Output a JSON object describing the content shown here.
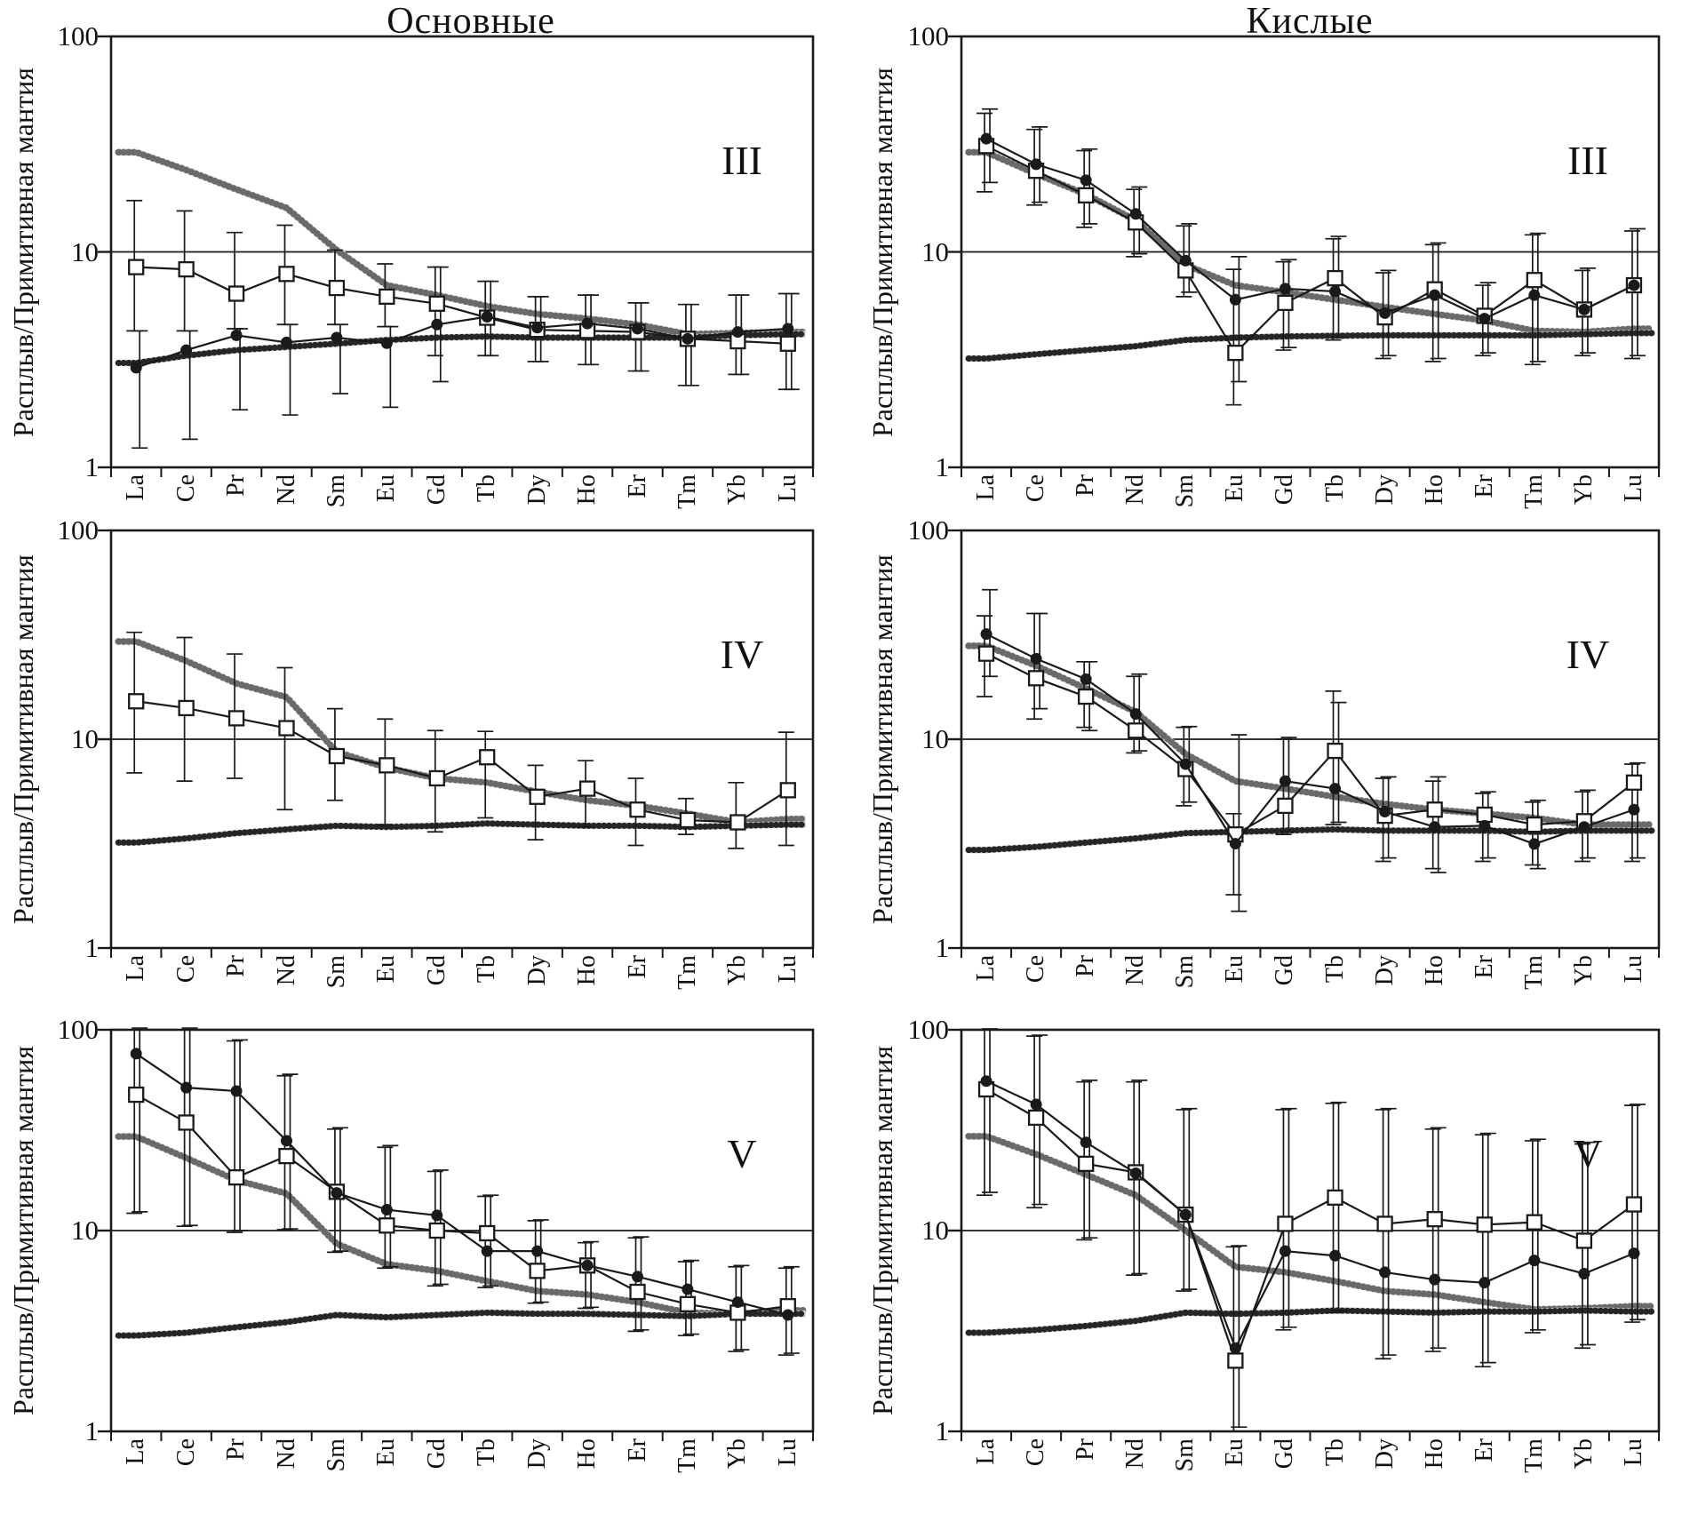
{
  "page": {
    "title_left": "Основные",
    "title_right": "Кислые",
    "y_axis_label": "Расплыв/Примитивная мантия"
  },
  "chart_data": [
    {
      "type": "line",
      "id": "basic-III",
      "column": "Основные",
      "panel_label": "III",
      "ylim": [
        1,
        100
      ],
      "y_scale": "log",
      "y_ticks": [
        "1",
        "10",
        "100"
      ],
      "gridline_y": 10,
      "x_categories": [
        "La",
        "Ce",
        "Pr",
        "Nd",
        "Sm",
        "Eu",
        "Gd",
        "Tb",
        "Dy",
        "Ho",
        "Er",
        "Tm",
        "Yb",
        "Lu"
      ],
      "series": [
        {
          "name": "upper-dotted-band",
          "style": "band-light",
          "values": [
            29,
            24,
            19.5,
            16,
            10.2,
            7.0,
            6.3,
            5.6,
            5.15,
            4.9,
            4.6,
            4.15,
            4.2,
            4.25
          ]
        },
        {
          "name": "lower-dotted-band",
          "style": "band-dark",
          "values": [
            3.05,
            3.3,
            3.5,
            3.62,
            3.75,
            3.9,
            4.0,
            4.05,
            4.0,
            4.0,
            4.0,
            4.0,
            4.1,
            4.15
          ]
        },
        {
          "name": "open-squares",
          "style": "square",
          "values": [
            8.5,
            8.3,
            6.4,
            7.9,
            6.8,
            6.2,
            5.75,
            4.95,
            4.35,
            4.3,
            4.25,
            3.95,
            3.85,
            3.75
          ],
          "err_lo": [
            4.3,
            4.3,
            4.4,
            4.6,
            4.6,
            4.5,
            3.3,
            3.3,
            3.1,
            3.0,
            2.8,
            2.4,
            2.7,
            2.3
          ],
          "err_hi": [
            17.3,
            15.5,
            12.3,
            13.3,
            10.2,
            8.8,
            8.5,
            7.3,
            6.2,
            6.3,
            5.8,
            5.7,
            6.3,
            6.4
          ]
        },
        {
          "name": "filled-circles",
          "style": "circle",
          "values": [
            2.9,
            3.5,
            4.1,
            3.8,
            4.0,
            3.77,
            4.6,
            5.0,
            4.45,
            4.65,
            4.4,
            3.95,
            4.25,
            4.4
          ],
          "err_lo": [
            1.23,
            1.35,
            1.85,
            1.75,
            2.2,
            1.9,
            2.5,
            3.3,
            3.1,
            3.0,
            2.8,
            2.4,
            2.7,
            2.3
          ],
          "err_hi": [
            4.3,
            4.3,
            4.4,
            4.6,
            4.6,
            4.5,
            8.5,
            7.3,
            6.2,
            6.3,
            5.8,
            5.7,
            6.3,
            6.4
          ]
        }
      ]
    },
    {
      "type": "line",
      "id": "acid-III",
      "column": "Кислые",
      "panel_label": "III",
      "ylim": [
        1,
        100
      ],
      "y_scale": "log",
      "y_ticks": [
        "1",
        "10",
        "100"
      ],
      "gridline_y": 10,
      "x_categories": [
        "La",
        "Ce",
        "Pr",
        "Nd",
        "Sm",
        "Eu",
        "Gd",
        "Tb",
        "Dy",
        "Ho",
        "Er",
        "Tm",
        "Yb",
        "Lu"
      ],
      "series": [
        {
          "name": "upper-dotted-band",
          "style": "band-light",
          "values": [
            29,
            23,
            18.5,
            14,
            8.7,
            7.0,
            6.5,
            6.0,
            5.55,
            5.15,
            4.8,
            4.3,
            4.25,
            4.4
          ]
        },
        {
          "name": "lower-dotted-band",
          "style": "band-dark",
          "values": [
            3.2,
            3.35,
            3.5,
            3.65,
            3.9,
            4.0,
            4.05,
            4.08,
            4.1,
            4.1,
            4.1,
            4.1,
            4.15,
            4.2
          ]
        },
        {
          "name": "open-squares",
          "style": "square",
          "values": [
            31,
            23.8,
            18.3,
            13.7,
            8.2,
            3.4,
            5.8,
            7.55,
            4.97,
            6.7,
            5.05,
            7.4,
            5.4,
            7.0
          ],
          "err_lo": [
            19,
            16.5,
            13,
            9.5,
            6.2,
            1.95,
            3.5,
            3.9,
            3.2,
            3.1,
            3.3,
            3.0,
            3.3,
            3.2
          ],
          "err_hi": [
            44,
            37,
            29.5,
            19.5,
            13.2,
            8.3,
            9.0,
            11.5,
            8.0,
            10.8,
            7.0,
            12.0,
            8.2,
            12.5
          ]
        },
        {
          "name": "filled-circles",
          "style": "circle",
          "values": [
            33.5,
            25.5,
            21.5,
            15.0,
            9.1,
            6.0,
            6.75,
            6.55,
            5.2,
            6.3,
            4.9,
            6.3,
            5.4,
            7.0
          ],
          "err_lo": [
            21,
            17,
            13.5,
            9.8,
            6.5,
            2.5,
            3.6,
            4.0,
            3.3,
            3.2,
            3.4,
            3.1,
            3.4,
            3.3
          ],
          "err_hi": [
            46,
            38,
            30,
            20,
            13.5,
            9.5,
            9.2,
            11.8,
            8.2,
            11.0,
            7.2,
            12.2,
            8.4,
            12.8
          ]
        }
      ]
    },
    {
      "type": "line",
      "id": "basic-IV",
      "column": "Основные",
      "panel_label": "IV",
      "ylim": [
        1,
        100
      ],
      "y_scale": "log",
      "y_ticks": [
        "1",
        "10",
        "100"
      ],
      "gridline_y": 10,
      "x_categories": [
        "La",
        "Ce",
        "Pr",
        "Nd",
        "Sm",
        "Eu",
        "Gd",
        "Tb",
        "Dy",
        "Ho",
        "Er",
        "Tm",
        "Yb",
        "Lu"
      ],
      "series": [
        {
          "name": "upper-dotted-band",
          "style": "band-light",
          "values": [
            29.4,
            23.7,
            18.5,
            15.9,
            8.7,
            7.3,
            6.5,
            6.2,
            5.6,
            5.1,
            4.8,
            4.4,
            4.0,
            4.15
          ]
        },
        {
          "name": "lower-dotted-band",
          "style": "band-dark",
          "values": [
            3.2,
            3.35,
            3.55,
            3.7,
            3.85,
            3.8,
            3.85,
            3.95,
            3.9,
            3.85,
            3.85,
            3.8,
            3.85,
            3.9
          ]
        },
        {
          "name": "open-squares",
          "style": "square",
          "values": [
            15.2,
            14.1,
            12.6,
            11.3,
            8.3,
            7.5,
            6.5,
            8.2,
            5.3,
            5.8,
            4.6,
            4.1,
            4.0,
            5.7
          ],
          "err_lo": [
            6.9,
            6.3,
            6.5,
            4.6,
            5.1,
            3.9,
            3.6,
            4.2,
            3.3,
            3.8,
            3.1,
            3.5,
            3.0,
            3.1
          ],
          "err_hi": [
            32.5,
            30.7,
            25.6,
            22,
            14,
            12.5,
            11,
            10.9,
            7.5,
            7.9,
            6.5,
            5.2,
            6.2,
            10.8
          ]
        }
      ]
    },
    {
      "type": "line",
      "id": "acid-IV",
      "column": "Кислые",
      "panel_label": "IV",
      "ylim": [
        1,
        100
      ],
      "y_scale": "log",
      "y_ticks": [
        "1",
        "10",
        "100"
      ],
      "gridline_y": 10,
      "x_categories": [
        "La",
        "Ce",
        "Pr",
        "Nd",
        "Sm",
        "Eu",
        "Gd",
        "Tb",
        "Dy",
        "Ho",
        "Er",
        "Tm",
        "Yb",
        "Lu"
      ],
      "series": [
        {
          "name": "upper-dotted-band",
          "style": "band-light",
          "values": [
            28,
            22.5,
            17.5,
            13.5,
            8.5,
            6.3,
            5.8,
            5.3,
            4.9,
            4.6,
            4.4,
            4.2,
            3.9,
            3.9
          ]
        },
        {
          "name": "lower-dotted-band",
          "style": "band-dark",
          "values": [
            2.95,
            3.05,
            3.2,
            3.35,
            3.55,
            3.6,
            3.65,
            3.7,
            3.65,
            3.65,
            3.65,
            3.6,
            3.65,
            3.65
          ]
        },
        {
          "name": "open-squares",
          "style": "square",
          "values": [
            25.7,
            19.6,
            16.0,
            11.0,
            7.2,
            3.5,
            4.8,
            8.8,
            4.3,
            4.6,
            4.35,
            3.9,
            4.05,
            6.2
          ],
          "err_lo": [
            16,
            12.5,
            11.4,
            8.6,
            4.8,
            1.8,
            3.5,
            3.9,
            2.6,
            2.4,
            2.6,
            2.5,
            2.6,
            2.6
          ],
          "err_hi": [
            39,
            40,
            23.5,
            20,
            11.4,
            4.4,
            10,
            17,
            6.5,
            6.3,
            5.5,
            5.0,
            5.6,
            7.6
          ]
        },
        {
          "name": "filled-circles",
          "style": "circle",
          "values": [
            31.9,
            24.3,
            19.4,
            13.2,
            7.6,
            3.16,
            6.3,
            5.8,
            4.5,
            3.8,
            3.85,
            3.15,
            3.8,
            4.6
          ],
          "err_lo": [
            20,
            14,
            11,
            8.8,
            5.0,
            1.5,
            3.6,
            4.0,
            2.7,
            2.3,
            2.7,
            2.4,
            2.7,
            2.7
          ],
          "err_hi": [
            52,
            40,
            23.5,
            20.5,
            11.5,
            10.5,
            10.2,
            15,
            6.6,
            6.6,
            5.6,
            5.1,
            5.7,
            7.7
          ]
        }
      ]
    },
    {
      "type": "line",
      "id": "basic-V",
      "column": "Основные",
      "panel_label": "V",
      "ylim": [
        1,
        100
      ],
      "y_scale": "log",
      "y_ticks": [
        "1",
        "10",
        "100"
      ],
      "gridline_y": 10,
      "x_categories": [
        "La",
        "Ce",
        "Pr",
        "Nd",
        "Sm",
        "Eu",
        "Gd",
        "Tb",
        "Dy",
        "Ho",
        "Er",
        "Tm",
        "Yb",
        "Lu"
      ],
      "series": [
        {
          "name": "upper-dotted-band",
          "style": "band-light",
          "values": [
            29.4,
            23,
            17.8,
            15.3,
            8.6,
            6.8,
            6.3,
            5.6,
            5.0,
            4.8,
            4.4,
            3.9,
            3.85,
            4.0
          ]
        },
        {
          "name": "lower-dotted-band",
          "style": "band-dark",
          "values": [
            3.0,
            3.1,
            3.3,
            3.5,
            3.8,
            3.7,
            3.8,
            3.9,
            3.85,
            3.85,
            3.8,
            3.75,
            3.85,
            3.85
          ]
        },
        {
          "name": "open-squares",
          "style": "square",
          "values": [
            47.5,
            34.5,
            18.4,
            23.5,
            15.6,
            10.6,
            10.0,
            9.7,
            6.3,
            6.7,
            4.95,
            4.3,
            3.9,
            4.2
          ],
          "err_lo": [
            12.2,
            10.5,
            9.8,
            10.1,
            7.8,
            6.5,
            5.3,
            5.2,
            4.35,
            4.1,
            3.15,
            3.0,
            2.5,
            2.4
          ],
          "err_hi": [
            100,
            100,
            88,
            59,
            32,
            26,
            19.7,
            14.8,
            11.2,
            8.7,
            9.2,
            7.0,
            6.6,
            6.5
          ]
        },
        {
          "name": "filled-circles",
          "style": "circle",
          "values": [
            76,
            51.5,
            49.5,
            28,
            15.4,
            12.7,
            11.9,
            7.9,
            7.9,
            6.7,
            5.9,
            5.1,
            4.4,
            3.8
          ],
          "err_lo": [
            12.4,
            10.6,
            10,
            10.2,
            7.9,
            6.6,
            5.4,
            5.3,
            4.4,
            4.15,
            3.2,
            3.05,
            2.55,
            2.45
          ],
          "err_hi": [
            102,
            102,
            89,
            60,
            32.5,
            26.5,
            20,
            15,
            11.3,
            8.8,
            9.3,
            7.1,
            6.7,
            6.6
          ]
        }
      ]
    },
    {
      "type": "line",
      "id": "acid-V",
      "column": "Кислые",
      "panel_label": "V",
      "ylim": [
        1,
        100
      ],
      "y_scale": "log",
      "y_ticks": [
        "1",
        "10",
        "100"
      ],
      "gridline_y": 10,
      "x_categories": [
        "La",
        "Ce",
        "Pr",
        "Nd",
        "Sm",
        "Eu",
        "Gd",
        "Tb",
        "Dy",
        "Ho",
        "Er",
        "Tm",
        "Yb",
        "Lu"
      ],
      "series": [
        {
          "name": "upper-dotted-band",
          "style": "band-light",
          "values": [
            29.5,
            24,
            19,
            15,
            10,
            6.6,
            6.2,
            5.6,
            5.0,
            4.8,
            4.4,
            4.05,
            4.1,
            4.2
          ]
        },
        {
          "name": "lower-dotted-band",
          "style": "band-dark",
          "values": [
            3.1,
            3.2,
            3.35,
            3.55,
            3.9,
            3.85,
            3.9,
            4.0,
            3.95,
            3.9,
            3.95,
            3.95,
            4.0,
            3.95
          ]
        },
        {
          "name": "open-squares",
          "style": "square",
          "values": [
            50.5,
            36.5,
            21.5,
            19.5,
            12.0,
            2.25,
            10.8,
            14.6,
            10.8,
            11.4,
            10.7,
            11.0,
            8.9,
            13.5
          ],
          "err_lo": [
            15,
            13,
            9,
            6,
            5,
            1.0,
            3.2,
            3.9,
            2.3,
            2.5,
            2.1,
            3.1,
            2.6,
            3.5
          ],
          "err_hi": [
            100,
            93,
            55,
            55,
            40,
            8.3,
            40,
            43,
            40,
            32,
            30,
            28,
            27,
            42
          ]
        },
        {
          "name": "filled-circles",
          "style": "circle",
          "values": [
            55.5,
            42.5,
            27.5,
            19.3,
            12.0,
            2.6,
            7.9,
            7.5,
            6.2,
            5.7,
            5.5,
            7.1,
            6.1,
            7.7
          ],
          "err_lo": [
            15.5,
            13.5,
            9.2,
            6.1,
            5.1,
            1.05,
            3.3,
            4.0,
            2.4,
            2.6,
            2.2,
            3.2,
            2.7,
            3.6
          ],
          "err_hi": [
            101,
            94,
            56,
            56,
            40.5,
            8.4,
            40.5,
            43.5,
            40.5,
            32.5,
            30.5,
            28.5,
            27.5,
            42.5
          ]
        }
      ]
    }
  ]
}
